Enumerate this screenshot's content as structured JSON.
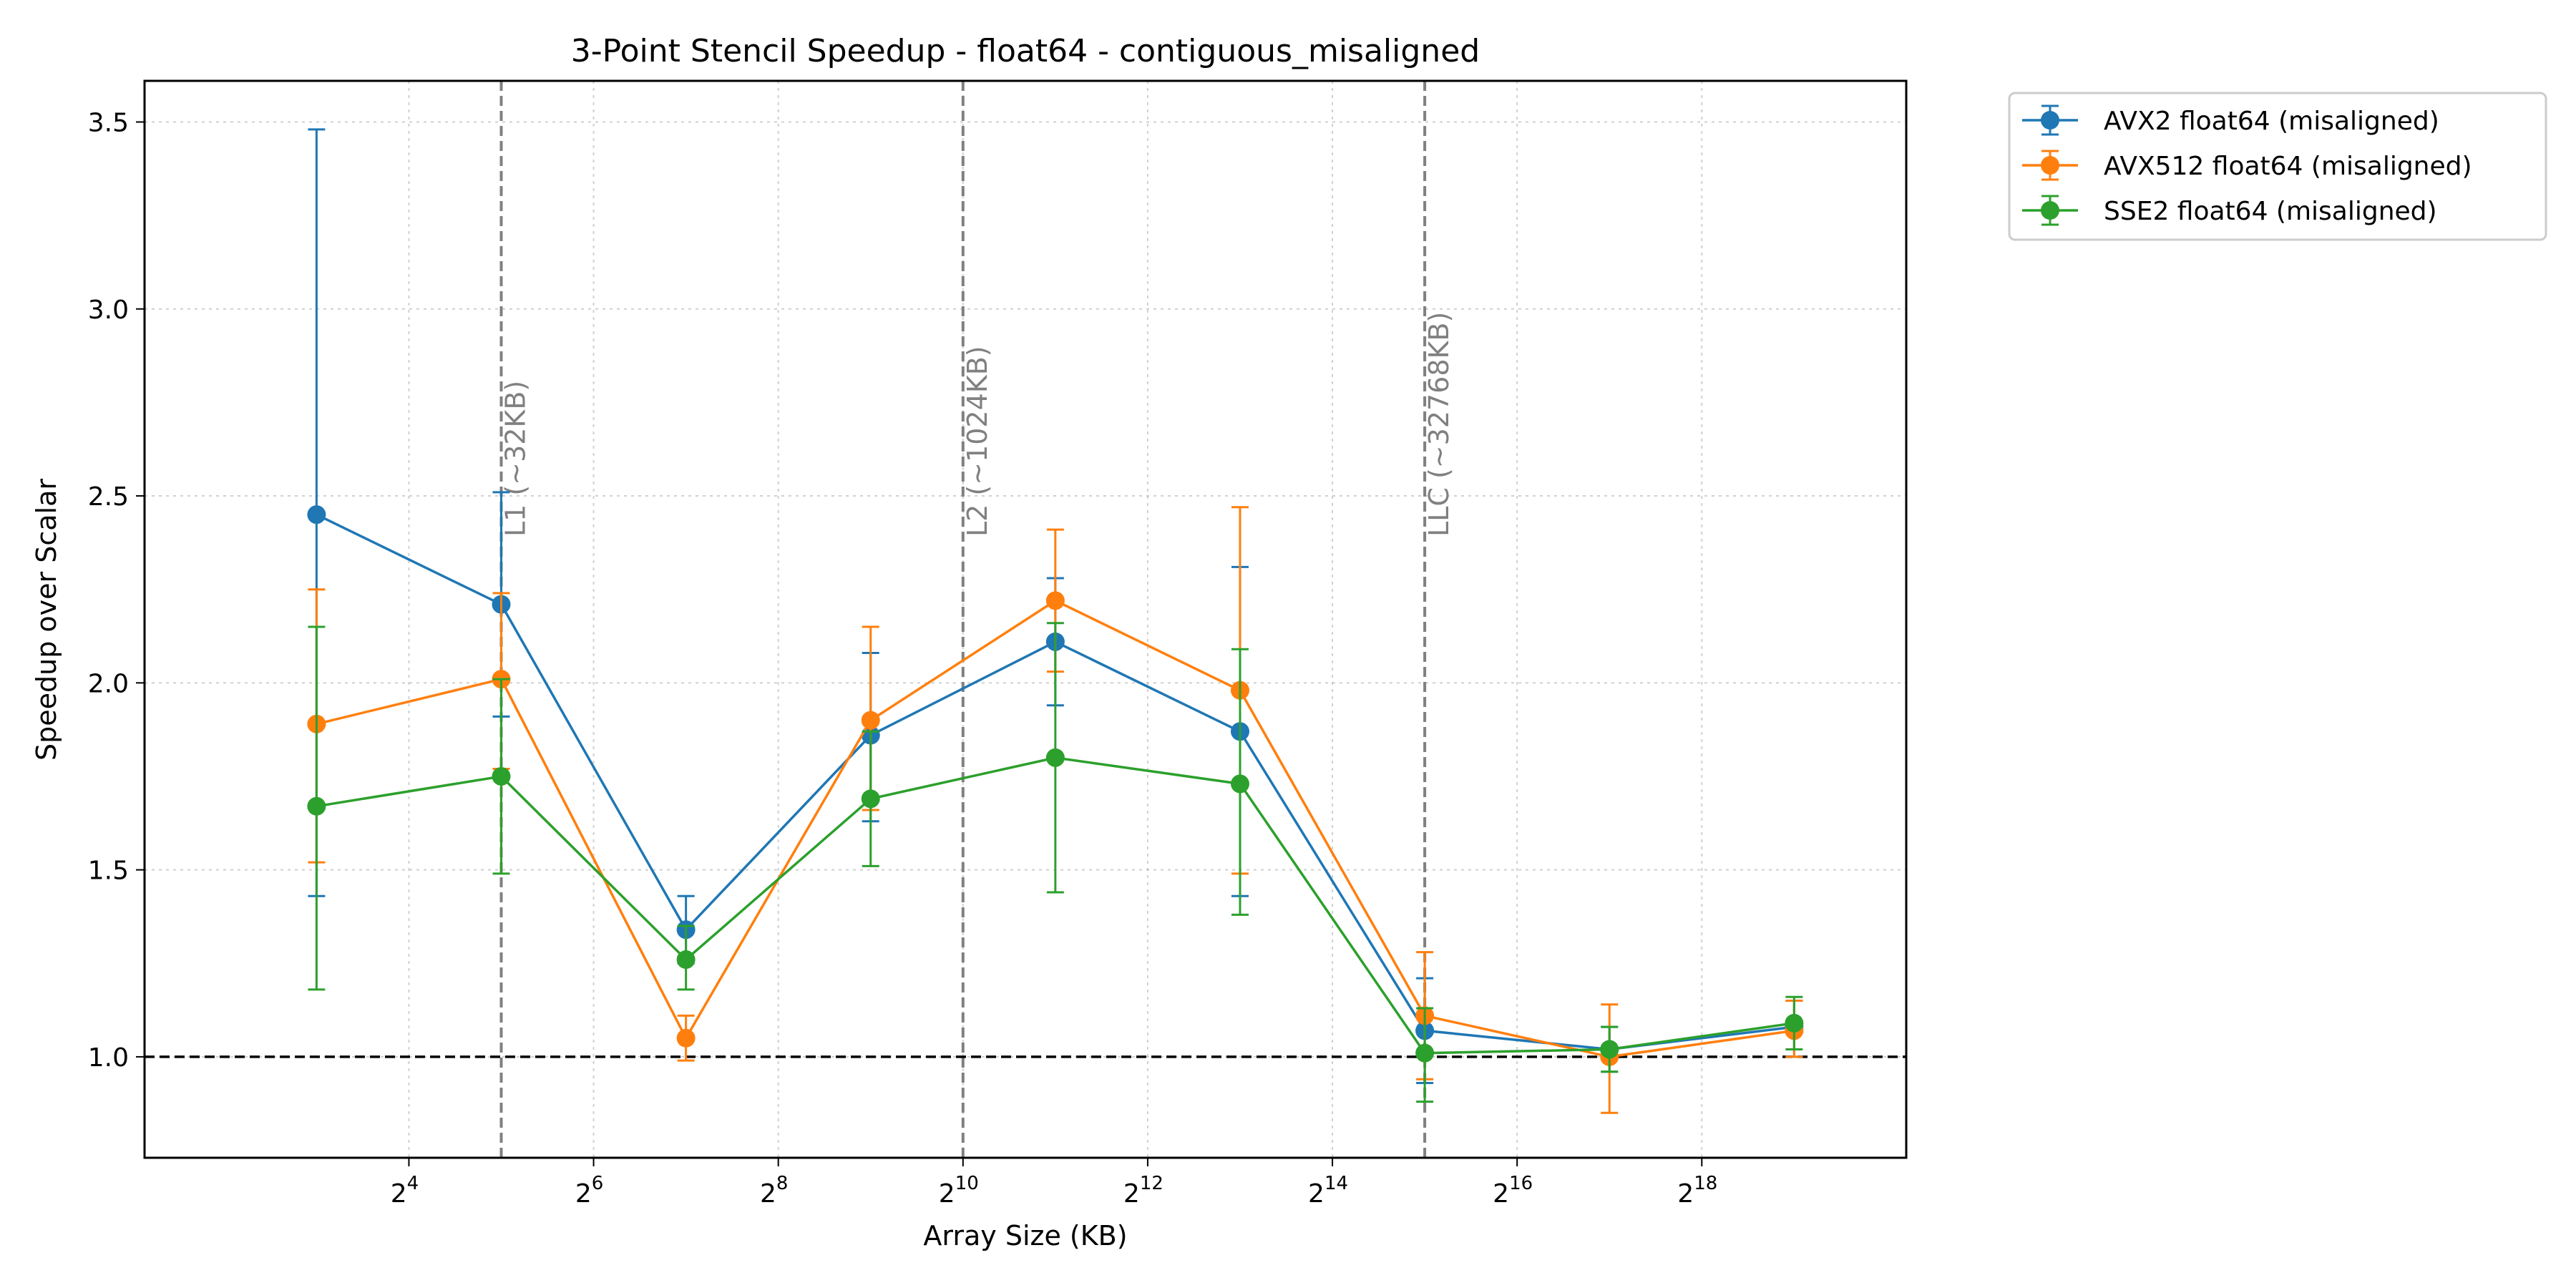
{
  "chart_data": {
    "type": "line",
    "title": "3-Point Stencil Speedup - float64 - contiguous_misaligned",
    "xlabel": "Array Size (KB)",
    "ylabel": "Speedup over Scalar",
    "x_scale": "log2",
    "x": [
      8,
      32,
      128,
      512,
      2048,
      8192,
      32768,
      131072,
      524288
    ],
    "xlim": [
      2.2,
      1216000
    ],
    "ylim": [
      0.73,
      3.61
    ],
    "x_ticks": [
      {
        "value": 16,
        "base": "2",
        "exp": "4"
      },
      {
        "value": 64,
        "base": "2",
        "exp": "6"
      },
      {
        "value": 256,
        "base": "2",
        "exp": "8"
      },
      {
        "value": 1024,
        "base": "2",
        "exp": "10"
      },
      {
        "value": 4096,
        "base": "2",
        "exp": "12"
      },
      {
        "value": 16384,
        "base": "2",
        "exp": "14"
      },
      {
        "value": 65536,
        "base": "2",
        "exp": "16"
      },
      {
        "value": 262144,
        "base": "2",
        "exp": "18"
      }
    ],
    "y_ticks": [
      {
        "value": 1.0,
        "label": "1.0"
      },
      {
        "value": 1.5,
        "label": "1.5"
      },
      {
        "value": 2.0,
        "label": "2.0"
      },
      {
        "value": 2.5,
        "label": "2.5"
      },
      {
        "value": 3.0,
        "label": "3.0"
      },
      {
        "value": 3.5,
        "label": "3.5"
      }
    ],
    "grid": true,
    "legend_position": "outside top-right",
    "baseline": {
      "y": 1.0,
      "style": "dashed",
      "color": "#000000"
    },
    "cache_lines": [
      {
        "x": 32,
        "label": "L1 (~32KB)"
      },
      {
        "x": 1024,
        "label": "L2 (~1024KB)"
      },
      {
        "x": 32768,
        "label": "LLC (~32768KB)"
      }
    ],
    "series": [
      {
        "name": "AVX2 float64 (misaligned)",
        "color": "#1f77b4",
        "values": [
          2.45,
          2.21,
          1.34,
          1.86,
          2.11,
          1.87,
          1.07,
          1.02,
          1.08
        ],
        "err_low": [
          1.43,
          1.91,
          1.25,
          1.63,
          1.94,
          1.43,
          0.93,
          0.96,
          1.0
        ],
        "err_high": [
          3.48,
          2.51,
          1.43,
          2.08,
          2.28,
          2.31,
          1.21,
          1.08,
          1.15
        ]
      },
      {
        "name": "AVX512 float64 (misaligned)",
        "color": "#ff7f0e",
        "values": [
          1.89,
          2.01,
          1.05,
          1.9,
          2.22,
          1.98,
          1.11,
          1.0,
          1.07
        ],
        "err_low": [
          1.52,
          1.77,
          0.99,
          1.66,
          2.03,
          1.49,
          0.94,
          0.85,
          1.0
        ],
        "err_high": [
          2.25,
          2.24,
          1.11,
          2.15,
          2.41,
          2.47,
          1.28,
          1.14,
          1.15
        ]
      },
      {
        "name": "SSE2 float64 (misaligned)",
        "color": "#2ca02c",
        "values": [
          1.67,
          1.75,
          1.26,
          1.69,
          1.8,
          1.73,
          1.01,
          1.02,
          1.09
        ],
        "err_low": [
          1.18,
          1.49,
          1.18,
          1.51,
          1.44,
          1.38,
          0.88,
          0.96,
          1.02
        ],
        "err_high": [
          2.15,
          2.01,
          1.35,
          1.87,
          2.16,
          2.09,
          1.13,
          1.08,
          1.16
        ]
      }
    ]
  }
}
